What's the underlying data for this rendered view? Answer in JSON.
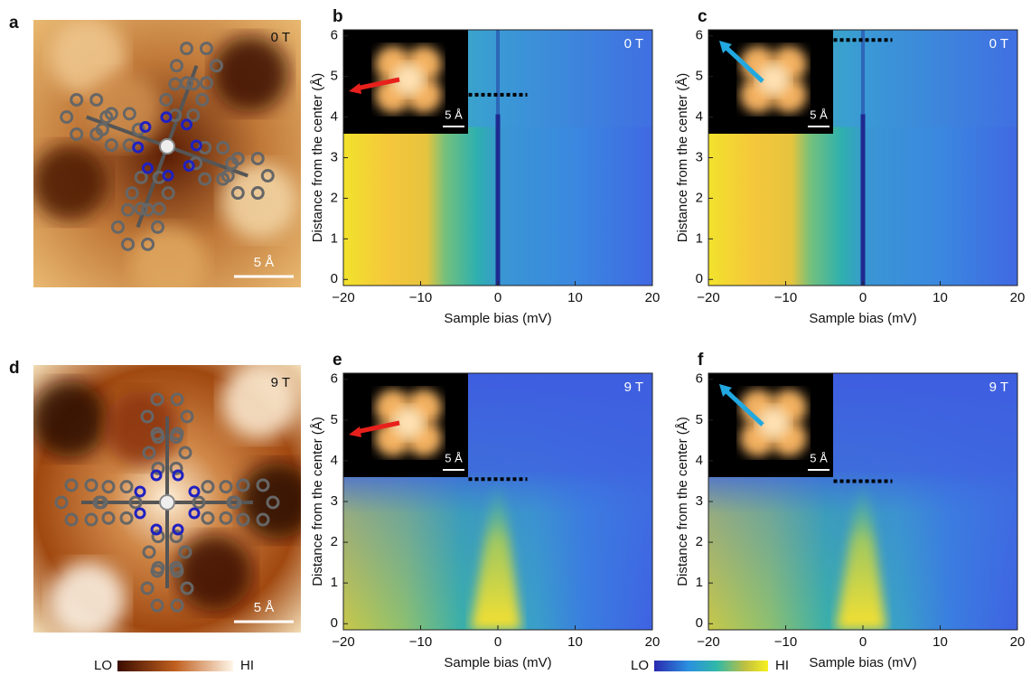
{
  "images": [
    {
      "letter": "a",
      "field": "0 T",
      "scale_bar": "5 Å"
    },
    {
      "letter": "d",
      "field": "9 T",
      "scale_bar": "5 Å"
    }
  ],
  "plots": [
    {
      "letter": "b",
      "field": "0 T",
      "inset_scale_bar": "5 Å",
      "xlabel": "Sample bias (mV)",
      "ylabel": "Distance from the center (Å)",
      "xlim": [
        -20,
        20
      ],
      "ylim": [
        -0.15,
        6.15
      ],
      "xticks": [
        {
          "value": -20,
          "label": "−20"
        },
        {
          "value": -10,
          "label": "−10"
        },
        0,
        10,
        20
      ],
      "yticks": [
        0,
        1,
        2,
        3,
        4,
        5,
        6
      ]
    },
    {
      "letter": "c",
      "field": "0 T",
      "inset_scale_bar": "5 Å",
      "xlabel": "Sample bias (mV)",
      "ylabel": "Distance from the center (Å)",
      "xlim": [
        -20,
        20
      ],
      "ylim": [
        -0.15,
        6.15
      ],
      "xticks": [
        {
          "value": -20,
          "label": "−20"
        },
        {
          "value": -10,
          "label": "−10"
        },
        0,
        10,
        20
      ],
      "yticks": [
        0,
        1,
        2,
        3,
        4,
        5,
        6
      ]
    },
    {
      "letter": "e",
      "field": "9 T",
      "inset_scale_bar": "5 Å",
      "xlabel": "Sample bias (mV)",
      "ylabel": "Distance from the center (Å)",
      "xlim": [
        -20,
        20
      ],
      "ylim": [
        -0.15,
        6.15
      ],
      "xticks": [
        {
          "value": -20,
          "label": "−20"
        },
        {
          "value": -10,
          "label": "−10"
        },
        0,
        10,
        20
      ],
      "yticks": [
        0,
        1,
        2,
        3,
        4,
        5,
        6
      ]
    },
    {
      "letter": "f",
      "field": "9 T",
      "inset_scale_bar": "5 Å",
      "xlabel": "Sample bias (mV)",
      "ylabel": "Distance from the center (Å)",
      "xlim": [
        -20,
        20
      ],
      "ylim": [
        -0.15,
        6.15
      ],
      "xticks": [
        {
          "value": -20,
          "label": "−20"
        },
        {
          "value": -10,
          "label": "−10"
        },
        0,
        10,
        20
      ],
      "yticks": [
        0,
        1,
        2,
        3,
        4,
        5,
        6
      ]
    }
  ],
  "colorbars": [
    {
      "low": "LO",
      "high": "HI"
    },
    {
      "low": "LO",
      "high": "HI"
    }
  ]
}
